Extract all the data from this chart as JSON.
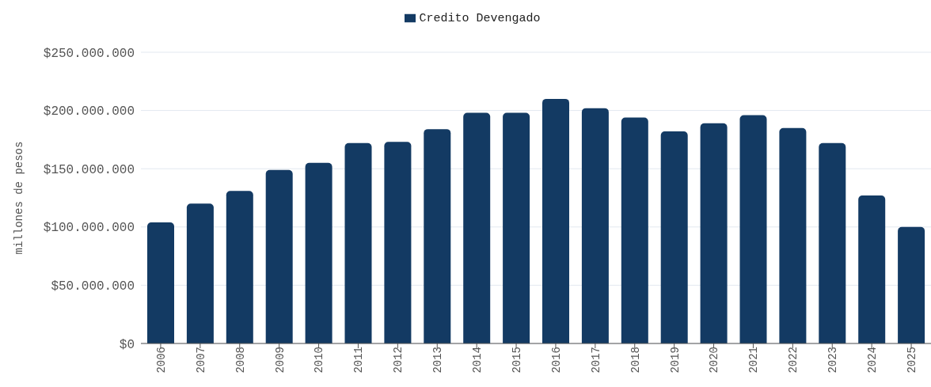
{
  "chart_data": {
    "type": "bar",
    "ylabel": "millones de pesos",
    "categories": [
      "2006",
      "2007",
      "2008",
      "2009",
      "2010",
      "2011",
      "2012",
      "2013",
      "2014",
      "2015",
      "2016",
      "2017",
      "2018",
      "2019",
      "2020",
      "2021",
      "2022",
      "2023",
      "2024",
      "2025"
    ],
    "series": [
      {
        "name": "Credito Devengado",
        "color": "#133a63",
        "values": [
          104000000,
          120000000,
          131000000,
          149000000,
          155000000,
          172000000,
          173000000,
          184000000,
          198000000,
          198000000,
          210000000,
          202000000,
          194000000,
          182000000,
          189000000,
          196000000,
          185000000,
          172000000,
          127000000,
          100000000
        ]
      }
    ],
    "ylim": [
      0,
      250000000
    ],
    "yticks": [
      {
        "value": 0,
        "label": "$0"
      },
      {
        "value": 50000000,
        "label": "$50.000.000"
      },
      {
        "value": 100000000,
        "label": "$100.000.000"
      },
      {
        "value": 150000000,
        "label": "$150.000.000"
      },
      {
        "value": 200000000,
        "label": "$200.000.000"
      },
      {
        "value": 250000000,
        "label": "$250.000.000"
      }
    ],
    "grid": "y",
    "legend": "top"
  }
}
